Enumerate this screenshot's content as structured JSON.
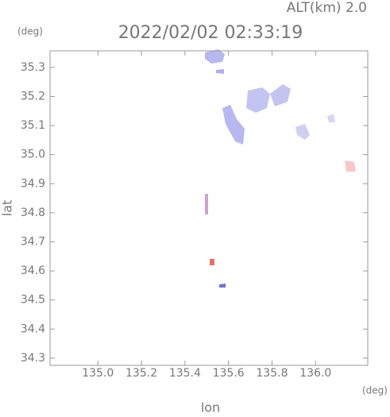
{
  "chart_data": {
    "type": "map",
    "title": "2022/02/02 02:33:19",
    "subtitle": "ALT(km) 2.0",
    "x_label": "lon",
    "y_label": "lat",
    "x_unit": "(deg)",
    "y_unit": "(deg)",
    "xlim": [
      134.78,
      136.24
    ],
    "ylim": [
      34.275,
      35.357
    ],
    "xticks": [
      {
        "value": 135,
        "label": "135.0"
      },
      135.2,
      135.4,
      135.6,
      135.8,
      {
        "value": 136,
        "label": "136.0"
      }
    ],
    "yticks": [
      35.3,
      35.2,
      35.1,
      {
        "value": 35,
        "label": "35.0"
      },
      34.9,
      34.8,
      34.7,
      34.6,
      34.5,
      34.4,
      34.3
    ]
  }
}
